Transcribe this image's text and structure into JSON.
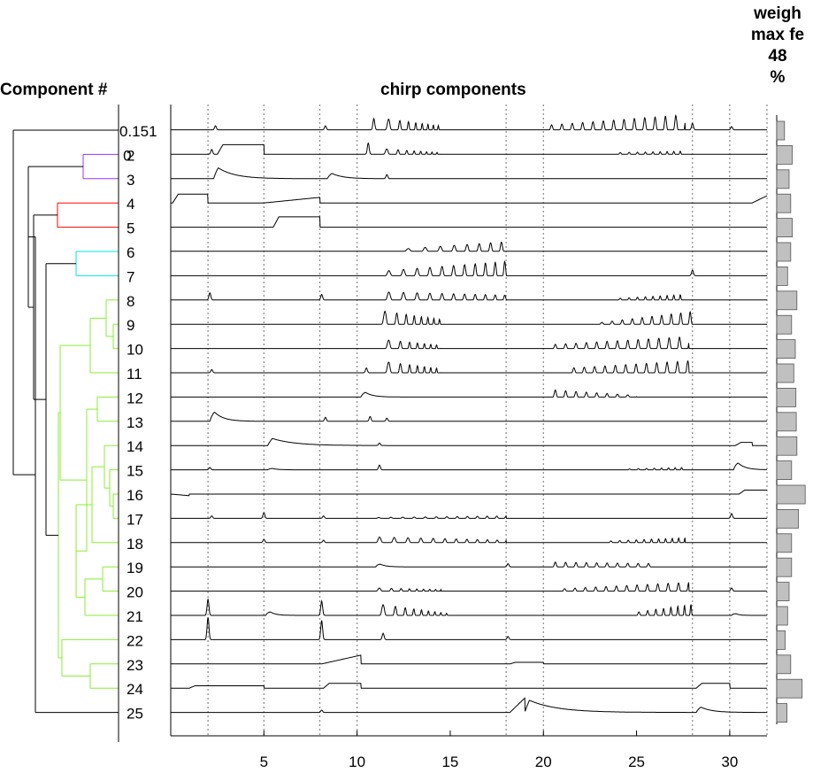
{
  "labels": {
    "component_axis": "Component #",
    "chirp_title": "chirp components",
    "weight_title": [
      "weigh",
      "max fe",
      "48",
      "%"
    ],
    "overlap_top": "0.151",
    "overlap_second": "2 0"
  },
  "chart_data": [
    {
      "type": "dendrogram",
      "leaves": [
        "1",
        "2",
        "3",
        "4",
        "5",
        "6",
        "7",
        "8",
        "9",
        "10",
        "11",
        "12",
        "13",
        "14",
        "15",
        "16",
        "17",
        "18",
        "19",
        "20",
        "21",
        "22",
        "23",
        "24",
        "25"
      ],
      "cluster_colors": {
        "2-3": "#9933ff",
        "4-5": "#ff0000",
        "6-7": "#00e5e5",
        "8-24": "#88ee33",
        "other": "#000000"
      }
    },
    {
      "type": "line",
      "title": "chirp components",
      "xlim": [
        0,
        32
      ],
      "x_ticks": [
        5,
        10,
        15,
        20,
        25,
        30
      ],
      "stimulus_markers": [
        2,
        5,
        8,
        10,
        18,
        20,
        28,
        30,
        32
      ],
      "series": [
        {
          "name": "1",
          "baseline": 0.1,
          "features": [
            {
              "t": "spk",
              "x": 2.4,
              "a": 0.25
            },
            {
              "t": "spk",
              "x": 8.3,
              "a": 0.25
            },
            {
              "t": "spk",
              "x": 10.9,
              "a": 0.7
            },
            {
              "t": "osc",
              "x0": 11.5,
              "x1": 14.5,
              "f0": 1.2,
              "f1": 4,
              "a0": 0.7,
              "a1": 0.25
            },
            {
              "t": "osc",
              "x0": 20.3,
              "x1": 27.6,
              "f0": 1.8,
              "f1": 1.8,
              "a0": 0.3,
              "a1": 0.95
            },
            {
              "t": "spk",
              "x": 28.0,
              "a": 0.4
            },
            {
              "t": "spk",
              "x": 30.1,
              "a": 0.2
            }
          ]
        },
        {
          "name": "2",
          "baseline": 0.05,
          "features": [
            {
              "t": "spk",
              "x": 2.2,
              "a": 0.3
            },
            {
              "t": "step",
              "x0": 2.5,
              "x1": 5.0,
              "a": 0.6
            },
            {
              "t": "spk",
              "x": 10.6,
              "a": 0.7
            },
            {
              "t": "osc",
              "x0": 11.4,
              "x1": 14.5,
              "f0": 1.2,
              "f1": 4,
              "a0": 0.35,
              "a1": 0.1
            },
            {
              "t": "osc",
              "x0": 24,
              "x1": 27.6,
              "f0": 2,
              "f1": 3,
              "a0": 0.1,
              "a1": 0.2
            }
          ]
        },
        {
          "name": "3",
          "baseline": 0.0,
          "features": [
            {
              "t": "dec",
              "x": 2.3,
              "a": 0.9,
              "tau": 0.9
            },
            {
              "t": "dec",
              "x": 8.4,
              "a": 0.5,
              "tau": 0.6
            },
            {
              "t": "spk",
              "x": 11.6,
              "a": 0.25
            }
          ]
        },
        {
          "name": "4",
          "baseline": 0.0,
          "features": [
            {
              "t": "step",
              "x0": 0.1,
              "x1": 2.0,
              "a": 0.55
            },
            {
              "t": "ramp",
              "x0": 5.0,
              "x1": 8.0,
              "a": 0.35
            },
            {
              "t": "ramp",
              "x0": 31.2,
              "x1": 32,
              "a": 0.45
            }
          ]
        },
        {
          "name": "5",
          "baseline": 0.0,
          "features": [
            {
              "t": "step",
              "x0": 5.5,
              "x1": 8.0,
              "a": 0.65
            }
          ]
        },
        {
          "name": "6",
          "baseline": 0.05,
          "features": [
            {
              "t": "osc",
              "x0": 12.5,
              "x1": 18.0,
              "f0": 1,
              "f1": 1.8,
              "a0": 0.15,
              "a1": 0.6
            }
          ]
        },
        {
          "name": "7",
          "baseline": 0.0,
          "features": [
            {
              "t": "osc",
              "x0": 11.5,
              "x1": 18.0,
              "f0": 1.2,
              "f1": 2,
              "a0": 0.3,
              "a1": 0.9
            },
            {
              "t": "spk",
              "x": 28.0,
              "a": 0.35
            }
          ]
        },
        {
          "name": "8",
          "baseline": 0.0,
          "features": [
            {
              "t": "spk",
              "x": 2.1,
              "a": 0.45
            },
            {
              "t": "spk",
              "x": 8.1,
              "a": 0.35
            },
            {
              "t": "osc",
              "x0": 11.5,
              "x1": 18.0,
              "f0": 1.2,
              "f1": 2,
              "a0": 0.5,
              "a1": 0.3
            },
            {
              "t": "osc",
              "x0": 24,
              "x1": 27.6,
              "f0": 2,
              "f1": 3,
              "a0": 0.1,
              "a1": 0.35
            }
          ]
        },
        {
          "name": "9",
          "baseline": 0.0,
          "features": [
            {
              "t": "osc",
              "x0": 11.3,
              "x1": 14.5,
              "f0": 1.2,
              "f1": 3.5,
              "a0": 0.85,
              "a1": 0.3
            },
            {
              "t": "osc",
              "x0": 23,
              "x1": 28.0,
              "f0": 1.8,
              "f1": 2,
              "a0": 0.1,
              "a1": 0.8
            }
          ]
        },
        {
          "name": "10",
          "baseline": 0.0,
          "features": [
            {
              "t": "osc",
              "x0": 11.5,
              "x1": 14.5,
              "f0": 1.2,
              "f1": 3.5,
              "a0": 0.55,
              "a1": 0.2
            },
            {
              "t": "osc",
              "x0": 20.5,
              "x1": 27.8,
              "f0": 1.8,
              "f1": 1.8,
              "a0": 0.25,
              "a1": 0.75
            }
          ]
        },
        {
          "name": "11",
          "baseline": 0.0,
          "features": [
            {
              "t": "spk",
              "x": 2.2,
              "a": 0.2
            },
            {
              "t": "spk",
              "x": 10.5,
              "a": 0.3
            },
            {
              "t": "osc",
              "x0": 11.5,
              "x1": 14.5,
              "f0": 1.2,
              "f1": 3.5,
              "a0": 0.7,
              "a1": 0.25
            },
            {
              "t": "osc",
              "x0": 21.5,
              "x1": 27.8,
              "f0": 1.8,
              "f1": 1.8,
              "a0": 0.3,
              "a1": 0.75
            }
          ]
        },
        {
          "name": "12",
          "baseline": 0.0,
          "features": [
            {
              "t": "dec",
              "x": 10.2,
              "a": 0.55,
              "tau": 0.4
            },
            {
              "t": "osc",
              "x0": 20.5,
              "x1": 25.0,
              "f0": 1.8,
              "f1": 1.8,
              "a0": 0.45,
              "a1": 0.1
            }
          ]
        },
        {
          "name": "13",
          "baseline": 0.0,
          "features": [
            {
              "t": "dec",
              "x": 2.1,
              "a": 0.95,
              "tau": 0.5
            },
            {
              "t": "spk",
              "x": 8.3,
              "a": 0.25
            },
            {
              "t": "spk",
              "x": 10.7,
              "a": 0.3
            },
            {
              "t": "spk",
              "x": 11.6,
              "a": 0.2
            }
          ]
        },
        {
          "name": "14",
          "baseline": 0.0,
          "features": [
            {
              "t": "dec",
              "x": 5.2,
              "a": 0.55,
              "tau": 1.2
            },
            {
              "t": "spk",
              "x": 11.2,
              "a": 0.15
            },
            {
              "t": "step",
              "x0": 30.3,
              "x1": 31.2,
              "a": 0.2
            }
          ]
        },
        {
          "name": "15",
          "baseline": 0.0,
          "features": [
            {
              "t": "spk",
              "x": 2.1,
              "a": 0.15
            },
            {
              "t": "dec",
              "x": 5.2,
              "a": 0.2,
              "tau": 0.3
            },
            {
              "t": "spk",
              "x": 11.2,
              "a": 0.3
            },
            {
              "t": "osc",
              "x0": 24.5,
              "x1": 27.5,
              "f0": 2,
              "f1": 3,
              "a0": 0.05,
              "a1": 0.15
            },
            {
              "t": "dec",
              "x": 30.2,
              "a": 0.8,
              "tau": 0.4
            }
          ]
        },
        {
          "name": "16",
          "baseline": 0.0,
          "features": [
            {
              "t": "ramp",
              "x0": 0,
              "x1": 1.0,
              "a": -0.1
            },
            {
              "t": "step",
              "x0": 30.5,
              "x1": 32,
              "a": 0.25
            }
          ]
        },
        {
          "name": "17",
          "baseline": 0.0,
          "features": [
            {
              "t": "spk",
              "x": 2.2,
              "a": 0.15
            },
            {
              "t": "spk",
              "x": 5.0,
              "a": 0.35
            },
            {
              "t": "spk",
              "x": 8.2,
              "a": 0.15
            },
            {
              "t": "osc",
              "x0": 11,
              "x1": 18.0,
              "f0": 1.5,
              "f1": 2,
              "a0": 0.05,
              "a1": 0.15
            },
            {
              "t": "spk",
              "x": 30.1,
              "a": 0.3
            }
          ]
        },
        {
          "name": "18",
          "baseline": 0.0,
          "features": [
            {
              "t": "spk",
              "x": 5.0,
              "a": 0.2
            },
            {
              "t": "spk",
              "x": 8.2,
              "a": 0.15
            },
            {
              "t": "osc",
              "x0": 11,
              "x1": 18.0,
              "f0": 1.2,
              "f1": 2,
              "a0": 0.35,
              "a1": 0.15
            },
            {
              "t": "osc",
              "x0": 23.5,
              "x1": 27.6,
              "f0": 2,
              "f1": 3,
              "a0": 0.1,
              "a1": 0.3
            }
          ]
        },
        {
          "name": "19",
          "baseline": 0.0,
          "features": [
            {
              "t": "dec",
              "x": 11.0,
              "a": 0.4,
              "tau": 0.3
            },
            {
              "t": "spk",
              "x": 18.1,
              "a": 0.2
            },
            {
              "t": "osc",
              "x0": 20.5,
              "x1": 26.0,
              "f0": 1.8,
              "f1": 1.8,
              "a0": 0.3,
              "a1": 0.2
            }
          ]
        },
        {
          "name": "20",
          "baseline": 0.0,
          "features": [
            {
              "t": "osc",
              "x0": 11,
              "x1": 14.5,
              "f0": 1.2,
              "f1": 3.5,
              "a0": 0.2,
              "a1": 0.1
            },
            {
              "t": "osc",
              "x0": 21,
              "x1": 27.8,
              "f0": 1.8,
              "f1": 1.8,
              "a0": 0.15,
              "a1": 0.55
            },
            {
              "t": "spk",
              "x": 30.1,
              "a": 0.2
            }
          ]
        },
        {
          "name": "21",
          "baseline": 0.0,
          "features": [
            {
              "t": "spk",
              "x": 2.0,
              "a": 1.0
            },
            {
              "t": "dec",
              "x": 5.1,
              "a": 0.5,
              "tau": 0.3
            },
            {
              "t": "spk",
              "x": 8.1,
              "a": 0.9
            },
            {
              "t": "osc",
              "x0": 11.2,
              "x1": 15.0,
              "f0": 1.2,
              "f1": 3.5,
              "a0": 0.7,
              "a1": 0.1
            },
            {
              "t": "osc",
              "x0": 25,
              "x1": 28.0,
              "f0": 2,
              "f1": 3,
              "a0": 0.2,
              "a1": 0.7
            },
            {
              "t": "dec",
              "x": 30.1,
              "a": 0.35,
              "tau": 0.2
            }
          ]
        },
        {
          "name": "22",
          "baseline": 0.0,
          "features": [
            {
              "t": "spk",
              "x": 2.0,
              "a": 1.4
            },
            {
              "t": "spk",
              "x": 8.1,
              "a": 1.2
            },
            {
              "t": "spk",
              "x": 11.4,
              "a": 0.4
            },
            {
              "t": "spk",
              "x": 18.1,
              "a": 0.2
            }
          ]
        },
        {
          "name": "23",
          "baseline": 0.0,
          "features": [
            {
              "t": "ramp",
              "x0": 8.1,
              "x1": 10.2,
              "a": 0.55
            },
            {
              "t": "step",
              "x0": 18.2,
              "x1": 20,
              "a": 0.1
            }
          ]
        },
        {
          "name": "24",
          "baseline": 0.0,
          "features": [
            {
              "t": "step",
              "x0": 1.0,
              "x1": 5.0,
              "a": 0.15
            },
            {
              "t": "step",
              "x0": 8.2,
              "x1": 10.2,
              "a": 0.3
            },
            {
              "t": "step",
              "x0": 28.2,
              "x1": 30.0,
              "a": 0.3
            }
          ]
        },
        {
          "name": "25",
          "baseline": 0.0,
          "features": [
            {
              "t": "spk",
              "x": 8.1,
              "a": 0.15
            },
            {
              "t": "ramp",
              "x0": 18.2,
              "x1": 19.0,
              "a": 0.9
            },
            {
              "t": "dec",
              "x": 19.0,
              "a": 0.9,
              "tau": 1.5
            },
            {
              "t": "dec",
              "x": 28.2,
              "a": 0.5,
              "tau": 0.6
            }
          ]
        }
      ]
    },
    {
      "type": "bar",
      "orientation": "horizontal",
      "categories": [
        "1",
        "2",
        "3",
        "4",
        "5",
        "6",
        "7",
        "8",
        "9",
        "10",
        "11",
        "12",
        "13",
        "14",
        "15",
        "16",
        "17",
        "18",
        "19",
        "20",
        "21",
        "22",
        "23",
        "24",
        "25"
      ],
      "values": [
        0.25,
        0.5,
        0.4,
        0.45,
        0.5,
        0.45,
        0.35,
        0.65,
        0.48,
        0.6,
        0.55,
        0.62,
        0.63,
        0.65,
        0.48,
        0.92,
        0.7,
        0.48,
        0.48,
        0.4,
        0.35,
        0.27,
        0.45,
        0.82,
        0.33
      ]
    }
  ]
}
